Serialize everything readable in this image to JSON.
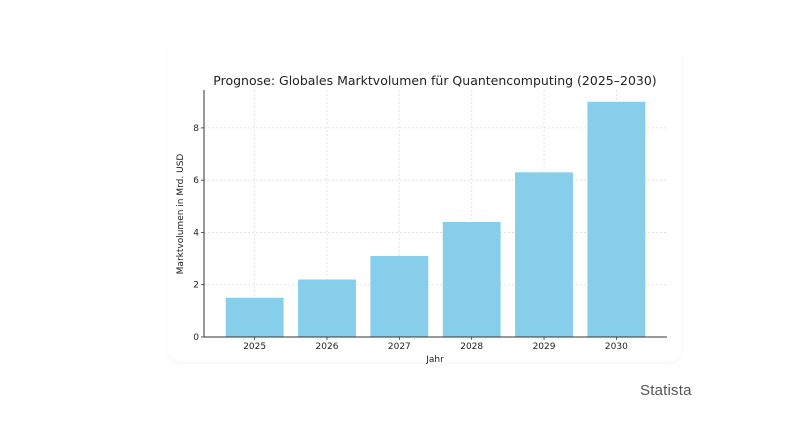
{
  "chart_data": {
    "type": "bar",
    "title": "Prognose: Globales Marktvolumen für Quantencomputing (2025–2030)",
    "xlabel": "Jahr",
    "ylabel": "Marktvolumen in Mrd. USD",
    "categories": [
      "2025",
      "2026",
      "2027",
      "2028",
      "2029",
      "2030"
    ],
    "values": [
      1.5,
      2.2,
      3.1,
      4.4,
      6.3,
      9.0
    ],
    "yticks": [
      0,
      2,
      4,
      6,
      8
    ],
    "ylim": [
      0,
      9.45
    ],
    "grid": true,
    "bar_color": "#87ceeb"
  },
  "source_label": "Statista"
}
